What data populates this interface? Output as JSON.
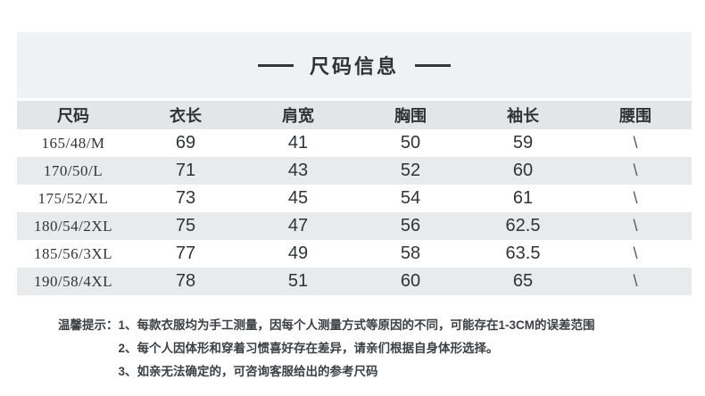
{
  "title": "尺码信息",
  "table": {
    "headers": [
      "尺码",
      "衣长",
      "肩宽",
      "胸围",
      "袖长",
      "腰围"
    ],
    "rows": [
      [
        "165/48/M",
        "69",
        "41",
        "50",
        "59",
        "\\"
      ],
      [
        "170/50/L",
        "71",
        "43",
        "52",
        "60",
        "\\"
      ],
      [
        "175/52/XL",
        "73",
        "45",
        "54",
        "61",
        "\\"
      ],
      [
        "180/54/2XL",
        "75",
        "47",
        "56",
        "62.5",
        "\\"
      ],
      [
        "185/56/3XL",
        "77",
        "49",
        "58",
        "63.5",
        "\\"
      ],
      [
        "190/58/4XL",
        "78",
        "51",
        "60",
        "65",
        "\\"
      ]
    ]
  },
  "notes": {
    "label": "温馨提示：",
    "items": [
      "1、每款衣服均为手工测量，因每个人测量方式等原因的不同，可能存在1-3CM的误差范围",
      "2、每个人因体形和穿着习惯喜好存在差异，请亲们根据自身体形选择。",
      "3、如亲无法确定的，可咨询客服给出的参考尺码"
    ]
  },
  "colors": {
    "title_block_bg": "#f0f1f2",
    "header_row_bg": "#e3e5e7",
    "zebra_row_bg": "#e8eaeb",
    "text_primary": "#2f3337",
    "note_text": "#3c4044"
  }
}
